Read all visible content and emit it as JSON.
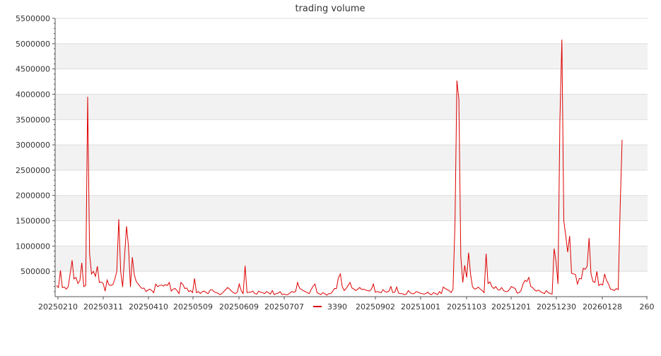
{
  "chart_data": {
    "type": "line",
    "title": "trading volume",
    "xlabel": "",
    "ylabel": "",
    "ylim": [
      0,
      5500000
    ],
    "yticks": [
      500000,
      1000000,
      1500000,
      2000000,
      2500000,
      3000000,
      3500000,
      4000000,
      4500000,
      5000000,
      5500000
    ],
    "ytick_labels": [
      "500000",
      "1000000",
      "1500000",
      "2000000",
      "2500000",
      "3000000",
      "3500000",
      "4000000",
      "4500000",
      "5000000",
      "5500000"
    ],
    "xtick_labels": [
      "20250210",
      "20250311",
      "20250410",
      "20250509",
      "20250609",
      "20250707",
      "20250902",
      "20251001",
      "20251103",
      "20251201",
      "20251230",
      "20260128",
      "260"
    ],
    "grid": true,
    "banded_background": true,
    "legend_position": "bottom",
    "colors": {
      "series": "#dd0000",
      "band": "#f2f2f2",
      "grid": "#dddddd",
      "axis": "#555555"
    },
    "series": [
      {
        "name": "3390",
        "values": [
          220000,
          180000,
          520000,
          180000,
          190000,
          150000,
          200000,
          450000,
          720000,
          350000,
          380000,
          260000,
          320000,
          670000,
          200000,
          220000,
          3950000,
          850000,
          450000,
          500000,
          400000,
          600000,
          280000,
          290000,
          260000,
          110000,
          330000,
          230000,
          220000,
          240000,
          350000,
          500000,
          1530000,
          500000,
          190000,
          800000,
          1390000,
          1000000,
          190000,
          780000,
          430000,
          300000,
          250000,
          200000,
          160000,
          170000,
          100000,
          130000,
          150000,
          120000,
          80000,
          250000,
          200000,
          220000,
          230000,
          210000,
          240000,
          220000,
          280000,
          110000,
          150000,
          160000,
          120000,
          60000,
          280000,
          240000,
          160000,
          170000,
          100000,
          120000,
          80000,
          360000,
          80000,
          100000,
          60000,
          100000,
          110000,
          80000,
          60000,
          130000,
          140000,
          100000,
          80000,
          70000,
          40000,
          60000,
          100000,
          140000,
          180000,
          150000,
          110000,
          80000,
          60000,
          90000,
          250000,
          120000,
          60000,
          610000,
          80000,
          90000,
          90000,
          110000,
          60000,
          50000,
          110000,
          90000,
          80000,
          60000,
          100000,
          80000,
          50000,
          120000,
          40000,
          60000,
          70000,
          100000,
          40000,
          50000,
          40000,
          40000,
          70000,
          100000,
          90000,
          100000,
          280000,
          170000,
          140000,
          120000,
          100000,
          80000,
          60000,
          140000,
          210000,
          250000,
          80000,
          60000,
          40000,
          80000,
          60000,
          30000,
          60000,
          60000,
          100000,
          160000,
          160000,
          370000,
          450000,
          200000,
          120000,
          160000,
          220000,
          280000,
          170000,
          150000,
          120000,
          150000,
          180000,
          140000,
          150000,
          130000,
          120000,
          110000,
          150000,
          250000,
          90000,
          100000,
          90000,
          80000,
          140000,
          100000,
          90000,
          110000,
          200000,
          80000,
          90000,
          190000,
          70000,
          60000,
          60000,
          40000,
          50000,
          120000,
          80000,
          60000,
          60000,
          100000,
          90000,
          70000,
          60000,
          50000,
          60000,
          90000,
          50000,
          40000,
          80000,
          60000,
          40000,
          100000,
          60000,
          190000,
          160000,
          140000,
          120000,
          80000,
          150000,
          1450000,
          4270000,
          3900000,
          800000,
          280000,
          620000,
          380000,
          870000,
          450000,
          200000,
          150000,
          160000,
          190000,
          150000,
          120000,
          80000,
          850000,
          260000,
          290000,
          200000,
          160000,
          200000,
          140000,
          130000,
          180000,
          120000,
          100000,
          100000,
          140000,
          200000,
          180000,
          160000,
          70000,
          80000,
          120000,
          250000,
          320000,
          300000,
          380000,
          200000,
          180000,
          130000,
          110000,
          130000,
          100000,
          80000,
          60000,
          120000,
          80000,
          60000,
          50000,
          950000,
          700000,
          250000,
          3500000,
          5080000,
          1500000,
          1200000,
          880000,
          1200000,
          460000,
          450000,
          440000,
          250000,
          360000,
          350000,
          560000,
          540000,
          600000,
          1160000,
          450000,
          300000,
          280000,
          500000,
          220000,
          250000,
          230000,
          450000,
          320000,
          250000,
          150000,
          140000,
          120000,
          160000,
          140000,
          1800000,
          3100000
        ]
      }
    ]
  }
}
